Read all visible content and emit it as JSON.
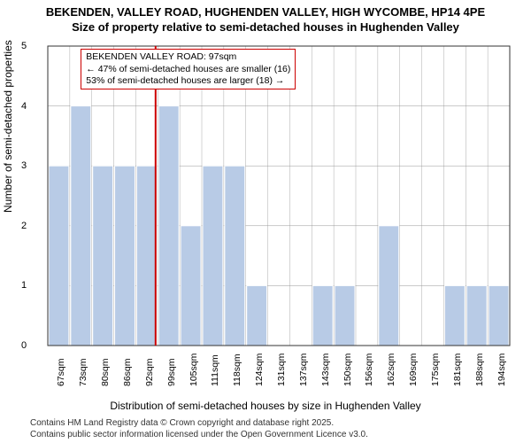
{
  "title_line1": "BEKENDEN, VALLEY ROAD, HUGHENDEN VALLEY, HIGH WYCOMBE, HP14 4PE",
  "title_line2": "Size of property relative to semi-detached houses in Hughenden Valley",
  "ylabel": "Number of semi-detached properties",
  "xlabel": "Distribution of semi-detached houses by size in Hughenden Valley",
  "attribution_line1": "Contains HM Land Registry data © Crown copyright and database right 2025.",
  "attribution_line2": "Contains public sector information licensed under the Open Government Licence v3.0.",
  "chart": {
    "type": "histogram",
    "ylim": [
      0,
      5
    ],
    "yticks": [
      0,
      1,
      2,
      3,
      4,
      5
    ],
    "xticks": [
      "67sqm",
      "73sqm",
      "80sqm",
      "86sqm",
      "92sqm",
      "99sqm",
      "105sqm",
      "111sqm",
      "118sqm",
      "124sqm",
      "131sqm",
      "137sqm",
      "143sqm",
      "150sqm",
      "156sqm",
      "162sqm",
      "169sqm",
      "175sqm",
      "181sqm",
      "188sqm",
      "194sqm"
    ],
    "bar_values": [
      3,
      4,
      3,
      3,
      3,
      4,
      2,
      3,
      3,
      1,
      0,
      0,
      1,
      1,
      0,
      2,
      0,
      0,
      1,
      1,
      1
    ],
    "bar_color": "#b8cbe6",
    "bar_border": "#ffffff",
    "grid_color": "#969696",
    "axis_color": "#333333",
    "background": "#ffffff",
    "marker_line_color": "#cc0000",
    "marker_position_index": 4.9,
    "bar_gap": 0.08
  },
  "annotation": {
    "line1": "BEKENDEN VALLEY ROAD: 97sqm",
    "line2": "← 47% of semi-detached houses are smaller (16)",
    "line3": "53% of semi-detached houses are larger (18) →",
    "border_color": "#cc0000"
  }
}
